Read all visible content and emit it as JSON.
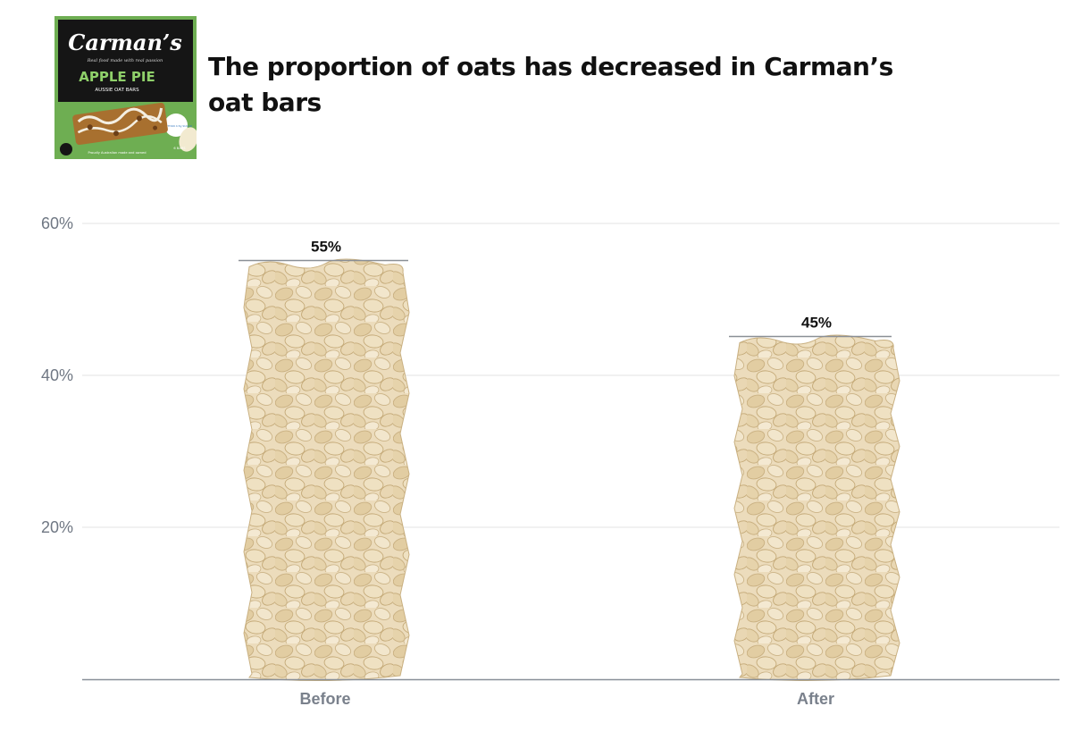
{
  "title": "The proportion of oats has decreased in Carman’s oat bars",
  "logo": {
    "brand": "Carman’s",
    "tagline": "Real food made with real passion",
    "product": "APPLE PIE",
    "subtitle": "AUSSIE OAT BARS",
    "badge": "LESS THAN 4.5g SUGAR",
    "footer": "Proudly Australian made and owned",
    "count": "6 BARS",
    "icon": "product-box-icon"
  },
  "colors": {
    "oat_fill": "#ecdcbc",
    "oat_flake": "#e2cda2",
    "oat_shadow": "#c9b081",
    "gridline": "#e3e3e3",
    "baseline": "#888f98",
    "logo_green": "#6eae52",
    "logo_black": "#151515"
  },
  "chart_data": {
    "type": "bar",
    "categories": [
      "Before",
      "After"
    ],
    "values": [
      55,
      45
    ],
    "value_labels": [
      "55%",
      "45%"
    ],
    "yticks": [
      20,
      40,
      60
    ],
    "ytick_labels": [
      "20%",
      "40%",
      "60%"
    ],
    "ylim": [
      0,
      60
    ],
    "xlabel": "",
    "ylabel": "",
    "grid": true
  }
}
